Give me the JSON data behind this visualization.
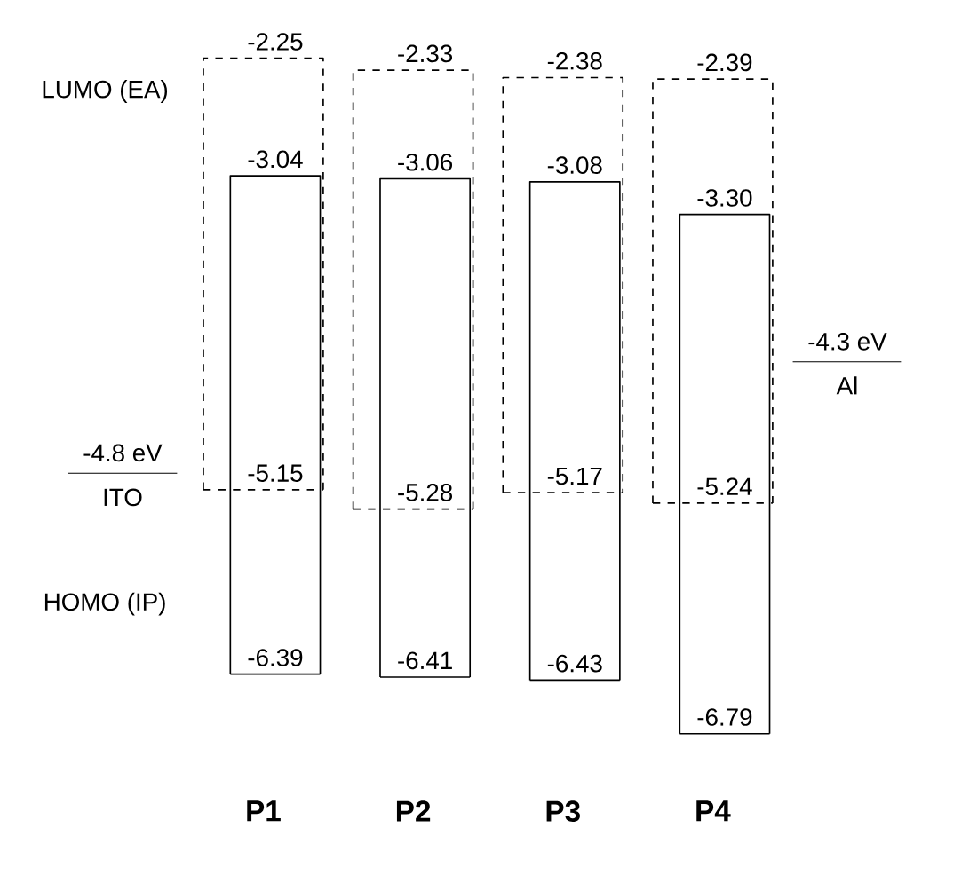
{
  "chart_data": {
    "type": "other",
    "categories": [
      "P1",
      "P2",
      "P3",
      "P4"
    ],
    "series": [
      {
        "color": "#000000",
        "line_style": "dashed",
        "values": [
          -2.25,
          -2.33,
          -2.38,
          -2.39
        ],
        "value_labels": [
          "-2.25",
          "-2.33",
          "-2.38",
          "-2.39"
        ]
      },
      {
        "color": "#000000",
        "line_style": "dashed",
        "values": [
          -5.15,
          -5.28,
          -5.17,
          -5.24
        ],
        "value_labels": [
          "-5.15",
          "-5.28",
          "-5.17",
          "-5.24"
        ]
      },
      {
        "color": "#000000",
        "line_style": "solid",
        "values": [
          -3.04,
          -3.06,
          -3.08,
          -3.3
        ],
        "value_labels": [
          "-3.04",
          "-3.06",
          "-3.08",
          "-3.30"
        ]
      },
      {
        "color": "#000000",
        "line_style": "solid",
        "values": [
          -6.39,
          -6.41,
          -6.43,
          -6.79
        ],
        "value_labels": [
          "-6.39",
          "-6.41",
          "-6.43",
          "-6.79"
        ]
      }
    ],
    "annotations": [
      "LUMO (EA)",
      "HOMO (IP)",
      "-4.8 eV",
      "ITO",
      "-4.3 eV",
      "Al"
    ]
  }
}
